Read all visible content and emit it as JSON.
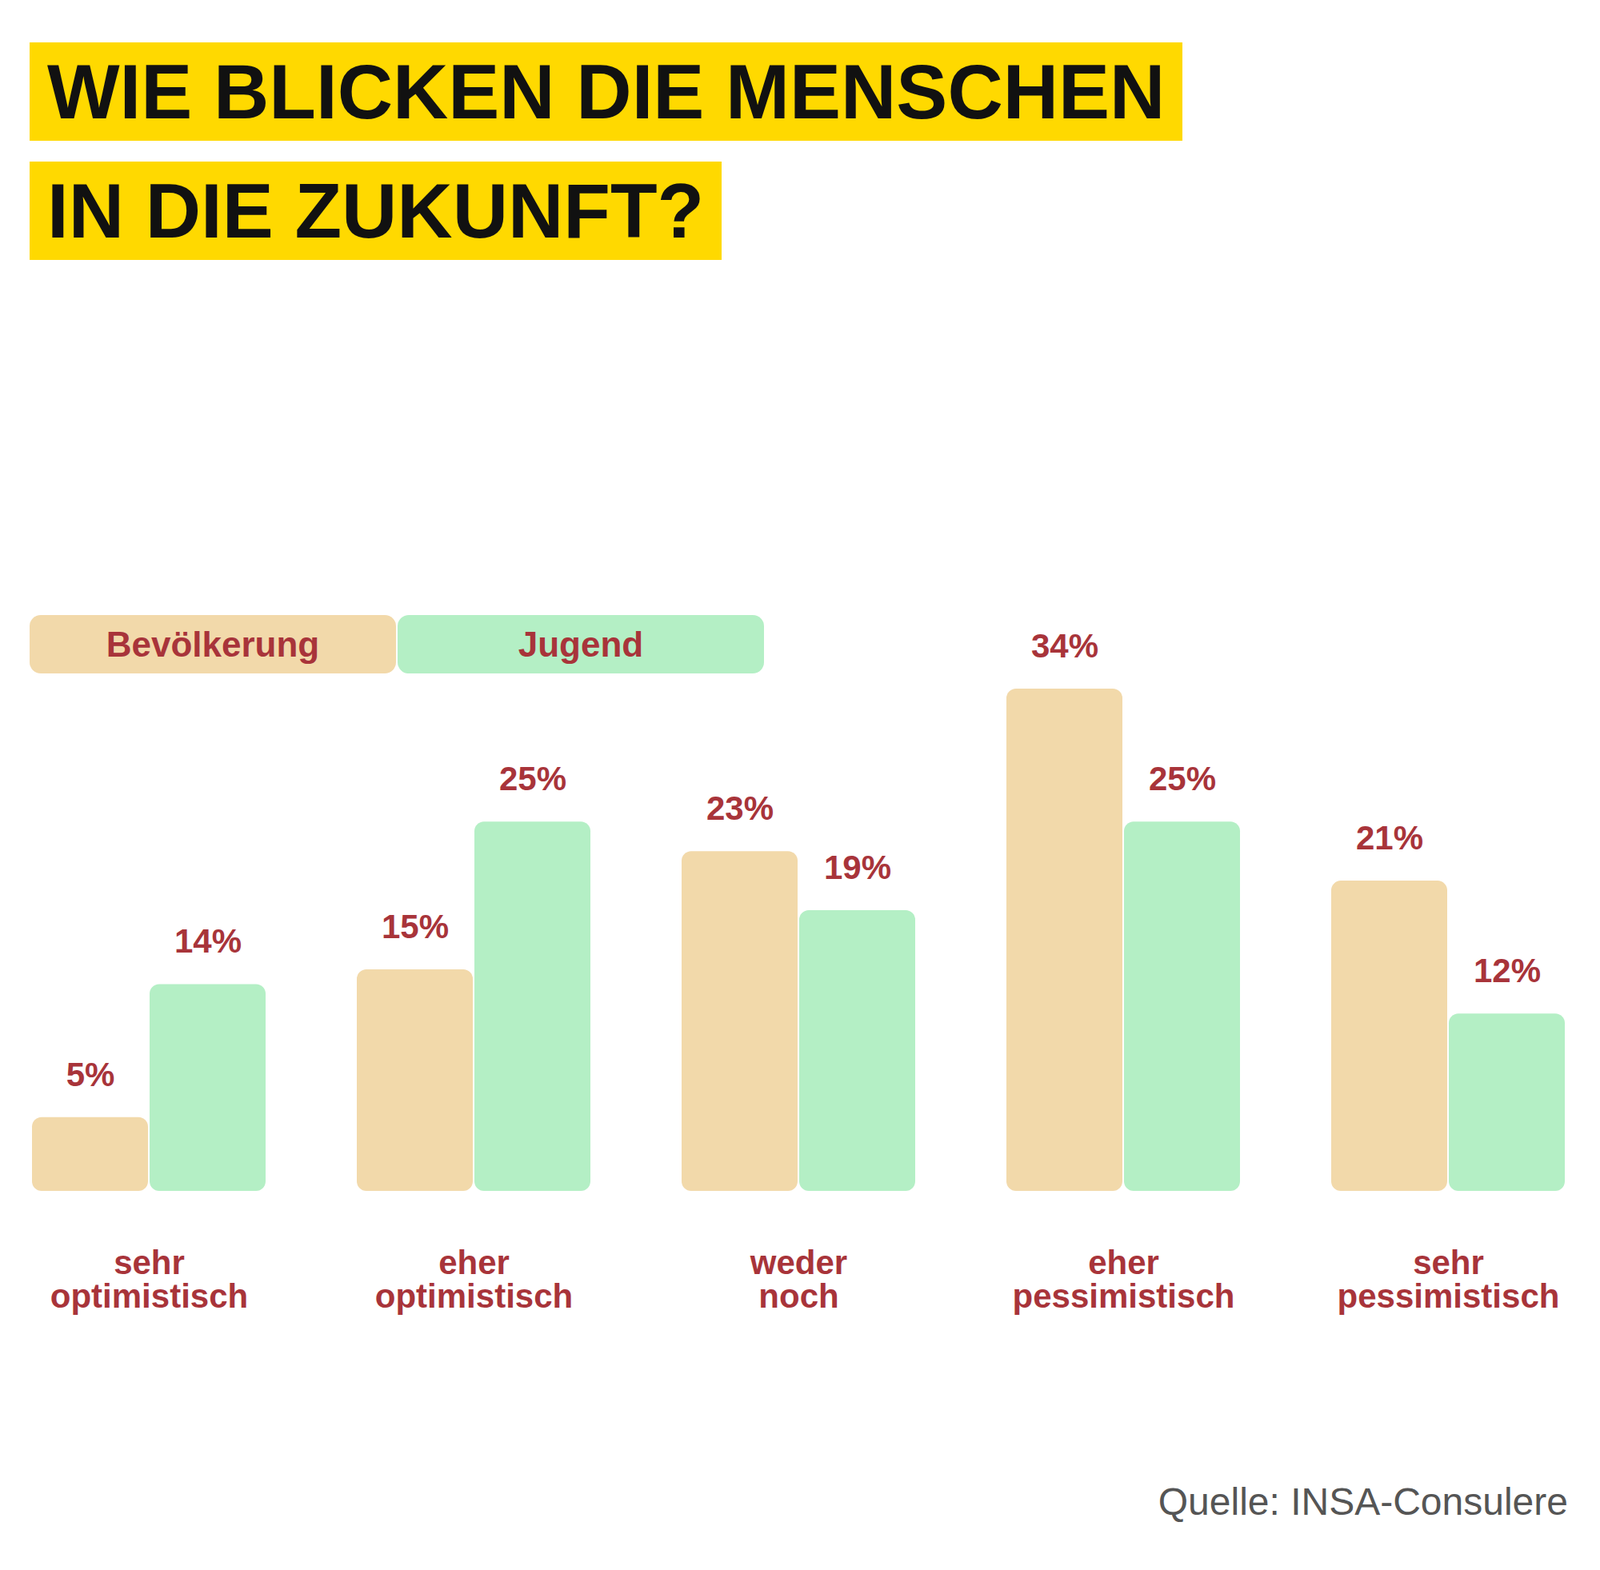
{
  "chart_data": {
    "type": "bar",
    "title": "WIE BLICKEN DIE MENSCHEN IN DIE ZUKUNFT?",
    "categories": [
      "sehr optimistisch",
      "eher optimistisch",
      "weder noch",
      "eher pessimistisch",
      "sehr pessimistisch"
    ],
    "series": [
      {
        "name": "Bevölkerung",
        "color": "#f2d9aa",
        "values": [
          5,
          15,
          23,
          34,
          21
        ],
        "value_labels": [
          "5%",
          "15%",
          "23%",
          "34%",
          "21%"
        ]
      },
      {
        "name": "Jugend",
        "color": "#b4efc5",
        "values": [
          14,
          25,
          19,
          25,
          12
        ],
        "value_labels": [
          "14%",
          "25%",
          "19%",
          "25%",
          "12%"
        ]
      }
    ],
    "data_labels": true,
    "legend": "top-left",
    "source": "Quelle: INSA-Consulere"
  }
}
